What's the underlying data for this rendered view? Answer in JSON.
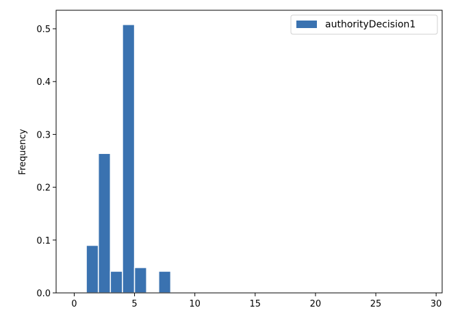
{
  "chart_data": {
    "type": "histogram",
    "ylabel": "Frequency",
    "xlim": [
      -1.5,
      30.5
    ],
    "ylim": [
      0,
      0.535
    ],
    "xticks": [
      0,
      5,
      10,
      15,
      20,
      25,
      30
    ],
    "yticks": [
      0.0,
      0.1,
      0.2,
      0.3,
      0.4,
      0.5
    ],
    "xtick_labels": [
      "0",
      "5",
      "10",
      "15",
      "20",
      "25",
      "30"
    ],
    "ytick_labels": [
      "0.0",
      "0.1",
      "0.2",
      "0.3",
      "0.4",
      "0.5"
    ],
    "bin_width": 1,
    "bins": [
      {
        "x0": 1,
        "x1": 2,
        "value": 0.09
      },
      {
        "x0": 2,
        "x1": 3,
        "value": 0.264
      },
      {
        "x0": 3,
        "x1": 4,
        "value": 0.041
      },
      {
        "x0": 4,
        "x1": 5,
        "value": 0.508
      },
      {
        "x0": 5,
        "x1": 6,
        "value": 0.048
      },
      {
        "x0": 7,
        "x1": 8,
        "value": 0.041
      }
    ],
    "series": [
      {
        "name": "authorityDecision1",
        "color": "#3a72b0"
      }
    ],
    "legend": {
      "position": "top-right",
      "entries": [
        "authorityDecision1"
      ]
    },
    "grid": false
  }
}
